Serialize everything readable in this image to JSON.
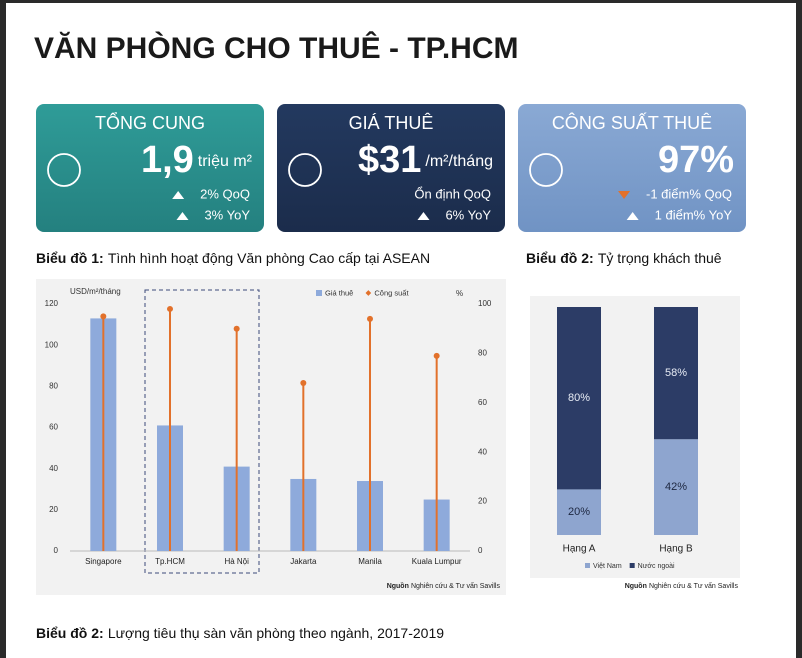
{
  "page": {
    "title": "VĂN PHÒNG CHO THUÊ - TP.HCM",
    "cards": [
      {
        "title": "TỔNG CUNG",
        "value": "1,9",
        "unit": "triệu m²",
        "rows": [
          {
            "text": "2% QoQ",
            "trend": "up"
          },
          {
            "text": "3% YoY",
            "trend": "up"
          }
        ]
      },
      {
        "title": "GIÁ THUÊ",
        "value": "$31",
        "unit": "/m²/tháng",
        "rows": [
          {
            "text": "Ổn định QoQ",
            "trend": "flat"
          },
          {
            "text": "6% YoY",
            "trend": "up"
          }
        ]
      },
      {
        "title": "CÔNG SUẤT THUÊ",
        "value": "97%",
        "unit": "",
        "rows": [
          {
            "text": "-1 điểm% QoQ",
            "trend": "down"
          },
          {
            "text": "1 điểm% YoY",
            "trend": "up"
          }
        ]
      }
    ],
    "bottom_caption": {
      "label": "Biểu đồ 2:",
      "text": "Lượng tiêu thụ sàn văn phòng theo ngành, 2017-2019"
    }
  },
  "chart_data": [
    {
      "type": "combo",
      "caption_label": "Biểu đồ 1:",
      "caption": "Tình hình hoạt động Văn phòng Cao cấp tại ASEAN",
      "y_label": "USD/m²/tháng",
      "y2_label": "%",
      "categories": [
        "Singapore",
        "Tp.HCM",
        "Hà Nội",
        "Jakarta",
        "Manila",
        "Kuala Lumpur"
      ],
      "series": [
        {
          "name": "Giá thuê",
          "type": "bar",
          "color": "#8eaadb",
          "values": [
            113,
            61,
            41,
            35,
            34,
            25
          ]
        },
        {
          "name": "Công suất",
          "type": "lollipop",
          "axis": "y2",
          "color": "#e2712b",
          "values": [
            95,
            98,
            90,
            68,
            94,
            79
          ]
        }
      ],
      "ylim": [
        0,
        120
      ],
      "yticks": [
        0,
        20,
        40,
        60,
        80,
        100,
        120
      ],
      "y2lim": [
        0,
        100
      ],
      "y2ticks": [
        0,
        20,
        40,
        60,
        80,
        100
      ],
      "source_label": "Nguồn",
      "source": "Nghiên cứu & Tư vấn Savills"
    },
    {
      "type": "stacked_bar",
      "caption_label": "Biểu đồ 2:",
      "caption": "Tỷ trọng khách thuê",
      "categories": [
        "Hạng A",
        "Hạng B"
      ],
      "series": [
        {
          "name": "Việt Nam",
          "color": "#8ea5cf",
          "values": [
            20,
            42
          ],
          "value_labels": [
            "20%",
            "42%"
          ]
        },
        {
          "name": "Nước ngoài",
          "color": "#2c3c66",
          "values": [
            80,
            58
          ],
          "value_labels": [
            "80%",
            "58%"
          ]
        }
      ],
      "ylim": [
        0,
        100
      ],
      "source_label": "Nguồn",
      "source": "Nghiên cứu & Tư vấn Savills"
    }
  ]
}
